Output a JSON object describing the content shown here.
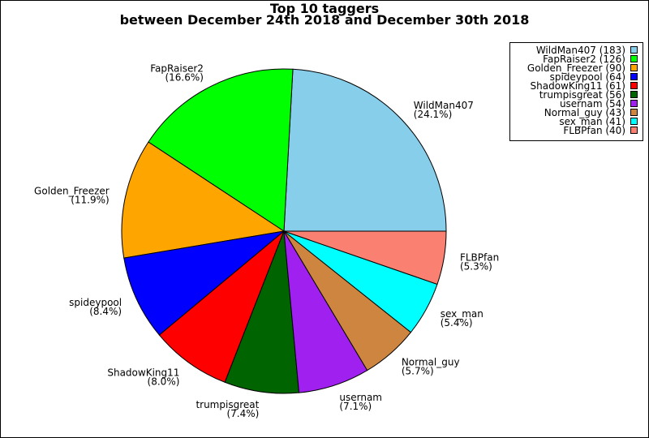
{
  "chart_data": {
    "type": "pie",
    "title": "Top 10 taggers",
    "subtitle": "between December 24th 2018 and December 30th 2018",
    "categories": [
      "WildMan407",
      "FapRaiser2",
      "Golden_Freezer",
      "spideypool",
      "ShadowKing11",
      "trumpisgreat",
      "usernam",
      "Normal_guy",
      "sex_man",
      "FLBPfan"
    ],
    "values": [
      24.1,
      16.6,
      11.9,
      8.4,
      8.0,
      7.4,
      7.1,
      5.7,
      5.4,
      5.3
    ],
    "value_labels": [
      "(24.1%)",
      "(16.6%)",
      "(11.9%)",
      "(8.4%)",
      "(8.0%)",
      "(7.4%)",
      "(7.1%)",
      "(5.7%)",
      "(5.4%)",
      "(5.3%)"
    ],
    "legend_labels": [
      "WildMan407 (183)",
      "FapRaiser2 (126)",
      "Golden_Freezer (90)",
      "spideypool (64)",
      "ShadowKing11 (61)",
      "trumpisgreat (56)",
      "usernam (54)",
      "Normal_guy (43)",
      "sex_man (41)",
      "FLBPfan (40)"
    ],
    "colors": [
      "#87ceeb",
      "#00ff00",
      "#ffa500",
      "#0000ff",
      "#ff0000",
      "#006400",
      "#a020f0",
      "#cd853f",
      "#00ffff",
      "#fa8072"
    ],
    "legend_position": "upper right"
  }
}
